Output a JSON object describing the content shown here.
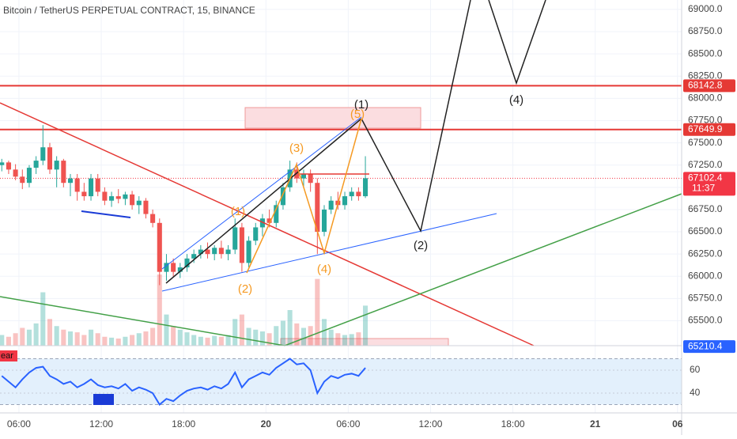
{
  "chart_data": {
    "type": "candlestick",
    "title": "Bitcoin / TetherUS PERPETUAL CONTRACT, 15, BINANCE",
    "x": [
      4.75,
      5.25,
      5.75,
      6.25,
      6.75,
      7.25,
      7.75,
      8.25,
      8.75,
      9.25,
      9.75,
      10.25,
      10.75,
      11.25,
      11.75,
      12.25,
      12.75,
      13.25,
      13.75,
      14.25,
      14.75,
      15.25,
      15.75,
      16.25,
      16.75,
      17.25,
      17.75,
      18.25,
      18.75,
      19.25,
      19.75,
      20.25,
      20.75,
      21.25,
      21.75,
      22.25,
      22.75,
      23.25,
      23.75,
      24.25,
      24.75,
      25.25,
      25.75,
      26.25,
      26.75,
      27.25,
      27.75,
      28.25,
      28.75,
      29.25,
      29.75,
      30.25,
      30.75,
      31.25
    ],
    "ohlc": [
      [
        67250,
        67320,
        67180,
        67280
      ],
      [
        67280,
        67300,
        67150,
        67200
      ],
      [
        67200,
        67260,
        67080,
        67120
      ],
      [
        67120,
        67200,
        66980,
        67050
      ],
      [
        67050,
        67250,
        67000,
        67220
      ],
      [
        67220,
        67350,
        67150,
        67300
      ],
      [
        67300,
        67700,
        67250,
        67450
      ],
      [
        67450,
        67500,
        67150,
        67200
      ],
      [
        67200,
        67350,
        67000,
        67300
      ],
      [
        67300,
        67320,
        67000,
        67050
      ],
      [
        67050,
        67150,
        66900,
        67100
      ],
      [
        67100,
        67150,
        66850,
        66950
      ],
      [
        66950,
        67050,
        66850,
        66900
      ],
      [
        66900,
        67150,
        66850,
        67100
      ],
      [
        67100,
        67150,
        66900,
        66950
      ],
      [
        66950,
        67000,
        66800,
        66850
      ],
      [
        66850,
        66950,
        66780,
        66900
      ],
      [
        66900,
        66980,
        66820,
        66870
      ],
      [
        66870,
        66950,
        66800,
        66920
      ],
      [
        66920,
        66960,
        66750,
        66800
      ],
      [
        66800,
        66900,
        66700,
        66850
      ],
      [
        66850,
        66880,
        66650,
        66700
      ],
      [
        66700,
        66750,
        66550,
        66600
      ],
      [
        66600,
        66650,
        65900,
        66050
      ],
      [
        66050,
        66250,
        65950,
        66150
      ],
      [
        66150,
        66200,
        66000,
        66050
      ],
      [
        66050,
        66150,
        65980,
        66100
      ],
      [
        66100,
        66250,
        66050,
        66200
      ],
      [
        66200,
        66300,
        66150,
        66250
      ],
      [
        66250,
        66350,
        66200,
        66300
      ],
      [
        66300,
        66380,
        66200,
        66250
      ],
      [
        66250,
        66350,
        66180,
        66320
      ],
      [
        66320,
        66400,
        66200,
        66250
      ],
      [
        66250,
        66350,
        66180,
        66300
      ],
      [
        66300,
        66650,
        66250,
        66550
      ],
      [
        66550,
        66600,
        66050,
        66150
      ],
      [
        66150,
        66450,
        66100,
        66400
      ],
      [
        66400,
        66600,
        66350,
        66550
      ],
      [
        66550,
        66700,
        66450,
        66650
      ],
      [
        66650,
        66750,
        66550,
        66600
      ],
      [
        66600,
        66850,
        66550,
        66800
      ],
      [
        66800,
        67050,
        66750,
        67000
      ],
      [
        67000,
        67300,
        66950,
        67200
      ],
      [
        67200,
        67280,
        67050,
        67100
      ],
      [
        67100,
        67200,
        67000,
        67150
      ],
      [
        67150,
        67200,
        66950,
        67050
      ],
      [
        67050,
        67100,
        66250,
        66500
      ],
      [
        66500,
        66800,
        66450,
        66750
      ],
      [
        66750,
        66900,
        66700,
        66850
      ],
      [
        66850,
        66950,
        66750,
        66800
      ],
      [
        66800,
        66950,
        66750,
        66900
      ],
      [
        66900,
        67000,
        66850,
        66950
      ],
      [
        66950,
        67000,
        66850,
        66900
      ],
      [
        66900,
        67350,
        66880,
        67102.4
      ]
    ],
    "volume": [
      12,
      10,
      14,
      20,
      18,
      25,
      60,
      30,
      22,
      18,
      16,
      15,
      12,
      18,
      14,
      10,
      9,
      8,
      10,
      12,
      14,
      16,
      20,
      80,
      35,
      22,
      18,
      15,
      12,
      10,
      9,
      11,
      10,
      12,
      30,
      35,
      20,
      18,
      16,
      14,
      22,
      28,
      40,
      25,
      20,
      22,
      75,
      30,
      18,
      14,
      12,
      13,
      15,
      45
    ],
    "up_color": "#26a69a",
    "down_color": "#ef5350",
    "xlim": [
      4.62,
      54.3
    ],
    "xticks": [
      {
        "value": 6,
        "label": "06:00"
      },
      {
        "value": 12,
        "label": "12:00"
      },
      {
        "value": 18,
        "label": "18:00"
      },
      {
        "value": 24,
        "label": "20"
      },
      {
        "value": 30,
        "label": "06:00"
      },
      {
        "value": 36,
        "label": "12:00"
      },
      {
        "value": 42,
        "label": "18:00"
      },
      {
        "value": 48,
        "label": "21"
      },
      {
        "value": 54,
        "label": "06"
      }
    ],
    "ylim": [
      65220,
      69106
    ],
    "yticks": [
      {
        "value": 65500,
        "label": "65500.0"
      },
      {
        "value": 65750,
        "label": "65750.0"
      },
      {
        "value": 66000,
        "label": "66000.0"
      },
      {
        "value": 66250,
        "label": "66250.0"
      },
      {
        "value": 66500,
        "label": "66500.0"
      },
      {
        "value": 66750,
        "label": "66750.0"
      },
      {
        "value": 67000,
        "label": "67000.0"
      },
      {
        "value": 67250,
        "label": "67250.0"
      },
      {
        "value": 67500,
        "label": "67500.0"
      },
      {
        "value": 67750,
        "label": "67750.0"
      },
      {
        "value": 68000,
        "label": "68000.0"
      },
      {
        "value": 68250,
        "label": "68250.0"
      },
      {
        "value": 68500,
        "label": "68500.0"
      },
      {
        "value": 68750,
        "label": "68750.0"
      },
      {
        "value": 69000,
        "label": "69000.0"
      }
    ],
    "price_lines": [
      {
        "value": 68142.8,
        "color": "#e53935"
      },
      {
        "value": 67649.9,
        "color": "#e53935"
      }
    ],
    "last_price": {
      "value": 67102.4,
      "countdown": "11:37",
      "color": "#f23645"
    },
    "marker_price": {
      "value": 65210.4,
      "color": "#2962ff"
    },
    "annotations": [
      {
        "text": "(1)",
        "color": "#222"
      },
      {
        "text": "(2)",
        "color": "#222"
      },
      {
        "text": "(4)",
        "color": "#222"
      },
      {
        "text": "(5)",
        "color": "#f59a23"
      },
      {
        "text": "(3)",
        "color": "#f59a23"
      },
      {
        "text": "(1)",
        "color": "#f59a23"
      },
      {
        "text": "(2)",
        "color": "#f59a23"
      },
      {
        "text": "(4)",
        "color": "#f59a23"
      }
    ],
    "rsi": {
      "values": [
        55,
        50,
        45,
        52,
        58,
        62,
        63,
        55,
        52,
        48,
        50,
        45,
        48,
        52,
        47,
        45,
        46,
        44,
        48,
        42,
        45,
        43,
        40,
        30,
        35,
        33,
        38,
        42,
        44,
        45,
        43,
        46,
        44,
        48,
        58,
        45,
        52,
        55,
        58,
        56,
        62,
        66,
        70,
        65,
        66,
        60,
        40,
        50,
        55,
        53,
        56,
        57,
        55,
        62
      ],
      "color": "#2962ff",
      "ylim": [
        25.5,
        79.3
      ],
      "yticks": [
        40,
        60
      ],
      "band": [
        30,
        70
      ],
      "label": "ear"
    }
  }
}
